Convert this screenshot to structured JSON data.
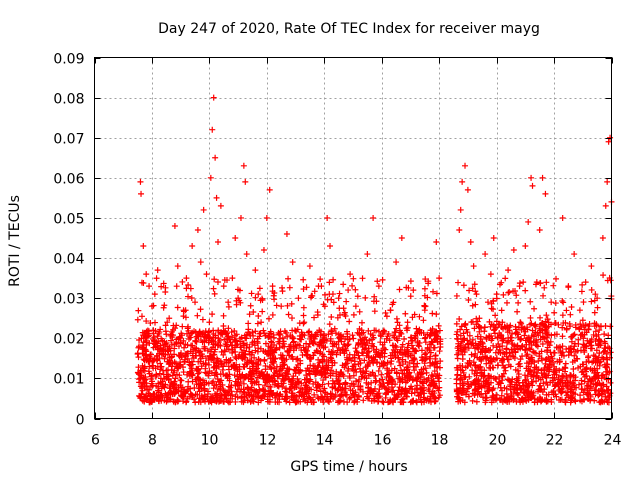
{
  "chart_data": {
    "type": "scatter",
    "title": "Day 247 of 2020, Rate Of TEC Index for receiver mayg",
    "xlabel": "GPS time / hours",
    "ylabel": "ROTI / TECUs",
    "xlim": [
      6,
      24
    ],
    "ylim": [
      0,
      0.09
    ],
    "xticks": [
      6,
      8,
      10,
      12,
      14,
      16,
      18,
      20,
      22,
      24
    ],
    "yticks": [
      0,
      0.01,
      0.02,
      0.03,
      0.04,
      0.05,
      0.06,
      0.07,
      0.08,
      0.09
    ],
    "xtick_labels": [
      "6",
      "8",
      "10",
      "12",
      "14",
      "16",
      "18",
      "20",
      "22",
      "24"
    ],
    "ytick_labels": [
      "0",
      "0.01",
      "0.02",
      "0.03",
      "0.04",
      "0.05",
      "0.06",
      "0.07",
      "0.08",
      "0.09"
    ],
    "grid": true,
    "marker": "+",
    "marker_color": "#ff0000",
    "series": [
      {
        "name": "ROTI",
        "points": [
          [
            7.6,
            0.059
          ],
          [
            7.62,
            0.056
          ],
          [
            7.7,
            0.043
          ],
          [
            7.8,
            0.036
          ],
          [
            7.9,
            0.033
          ],
          [
            8.0,
            0.028
          ],
          [
            8.1,
            0.031
          ],
          [
            8.2,
            0.037
          ],
          [
            7.55,
            0.018
          ],
          [
            7.65,
            0.012
          ],
          [
            7.75,
            0.008
          ],
          [
            7.85,
            0.005
          ],
          [
            7.95,
            0.015
          ],
          [
            8.05,
            0.022
          ],
          [
            8.15,
            0.011
          ],
          [
            8.3,
            0.009
          ],
          [
            8.4,
            0.016
          ],
          [
            8.5,
            0.021
          ],
          [
            8.6,
            0.025
          ],
          [
            8.7,
            0.013
          ],
          [
            8.8,
            0.048
          ],
          [
            8.9,
            0.038
          ],
          [
            9.0,
            0.019
          ],
          [
            9.1,
            0.027
          ],
          [
            9.2,
            0.035
          ],
          [
            9.3,
            0.014
          ],
          [
            9.4,
            0.043
          ],
          [
            9.5,
            0.029
          ],
          [
            9.6,
            0.047
          ],
          [
            9.7,
            0.039
          ],
          [
            9.8,
            0.052
          ],
          [
            9.9,
            0.036
          ],
          [
            10.0,
            0.024
          ],
          [
            10.05,
            0.06
          ],
          [
            10.1,
            0.072
          ],
          [
            10.15,
            0.08
          ],
          [
            10.2,
            0.065
          ],
          [
            10.25,
            0.055
          ],
          [
            10.3,
            0.044
          ],
          [
            10.4,
            0.053
          ],
          [
            10.5,
            0.033
          ],
          [
            10.6,
            0.018
          ],
          [
            10.7,
            0.011
          ],
          [
            10.8,
            0.035
          ],
          [
            10.9,
            0.045
          ],
          [
            11.0,
            0.03
          ],
          [
            11.1,
            0.05
          ],
          [
            11.2,
            0.063
          ],
          [
            11.25,
            0.059
          ],
          [
            11.3,
            0.041
          ],
          [
            11.4,
            0.026
          ],
          [
            11.5,
            0.019
          ],
          [
            11.6,
            0.037
          ],
          [
            11.7,
            0.031
          ],
          [
            11.8,
            0.024
          ],
          [
            11.9,
            0.042
          ],
          [
            12.0,
            0.05
          ],
          [
            12.1,
            0.057
          ],
          [
            12.2,
            0.033
          ],
          [
            12.3,
            0.015
          ],
          [
            12.5,
            0.028
          ],
          [
            12.7,
            0.046
          ],
          [
            12.9,
            0.039
          ],
          [
            13.0,
            0.012
          ],
          [
            13.1,
            0.03
          ],
          [
            13.3,
            0.024
          ],
          [
            13.5,
            0.038
          ],
          [
            13.7,
            0.021
          ],
          [
            13.9,
            0.033
          ],
          [
            14.1,
            0.05
          ],
          [
            14.2,
            0.043
          ],
          [
            14.3,
            0.018
          ],
          [
            14.5,
            0.03
          ],
          [
            14.7,
            0.026
          ],
          [
            14.9,
            0.036
          ],
          [
            15.1,
            0.028
          ],
          [
            15.3,
            0.022
          ],
          [
            15.5,
            0.041
          ],
          [
            15.7,
            0.05
          ],
          [
            15.9,
            0.033
          ],
          [
            16.1,
            0.019
          ],
          [
            16.3,
            0.027
          ],
          [
            16.5,
            0.039
          ],
          [
            16.7,
            0.045
          ],
          [
            16.9,
            0.024
          ],
          [
            17.1,
            0.032
          ],
          [
            17.3,
            0.018
          ],
          [
            17.5,
            0.027
          ],
          [
            17.7,
            0.022
          ],
          [
            17.9,
            0.044
          ],
          [
            18.0,
            0.035
          ],
          [
            13.0,
            0.004
          ],
          [
            14.6,
            0.006
          ],
          [
            16.4,
            0.007
          ],
          [
            17.6,
            0.005
          ],
          [
            18.7,
            0.047
          ],
          [
            18.75,
            0.052
          ],
          [
            18.8,
            0.059
          ],
          [
            18.9,
            0.063
          ],
          [
            19.0,
            0.057
          ],
          [
            19.1,
            0.044
          ],
          [
            19.2,
            0.038
          ],
          [
            19.3,
            0.031
          ],
          [
            19.4,
            0.025
          ],
          [
            19.5,
            0.019
          ],
          [
            19.6,
            0.041
          ],
          [
            19.7,
            0.029
          ],
          [
            19.8,
            0.036
          ],
          [
            19.9,
            0.045
          ],
          [
            20.0,
            0.031
          ],
          [
            20.2,
            0.024
          ],
          [
            20.4,
            0.037
          ],
          [
            20.6,
            0.042
          ],
          [
            20.8,
            0.033
          ],
          [
            21.0,
            0.043
          ],
          [
            21.1,
            0.049
          ],
          [
            21.2,
            0.06
          ],
          [
            21.25,
            0.058
          ],
          [
            21.4,
            0.034
          ],
          [
            21.5,
            0.047
          ],
          [
            21.6,
            0.06
          ],
          [
            21.7,
            0.056
          ],
          [
            21.9,
            0.029
          ],
          [
            22.1,
            0.021
          ],
          [
            22.3,
            0.05
          ],
          [
            22.5,
            0.033
          ],
          [
            22.7,
            0.041
          ],
          [
            22.9,
            0.027
          ],
          [
            23.1,
            0.034
          ],
          [
            23.3,
            0.038
          ],
          [
            23.5,
            0.03
          ],
          [
            23.7,
            0.045
          ],
          [
            23.8,
            0.053
          ],
          [
            23.85,
            0.059
          ],
          [
            23.9,
            0.069
          ],
          [
            23.95,
            0.07
          ],
          [
            24.0,
            0.054
          ],
          [
            20.9,
            0.005
          ],
          [
            22.4,
            0.004
          ],
          [
            19.6,
            0.008
          ]
        ],
        "dense_bands": [
          {
            "x_start": 7.5,
            "x_end": 18.05,
            "y_low": 0.004,
            "y_high": 0.022,
            "spike_max": 0.035
          },
          {
            "x_start": 18.6,
            "x_end": 24.0,
            "y_low": 0.004,
            "y_high": 0.024,
            "spike_max": 0.036
          }
        ]
      }
    ]
  }
}
